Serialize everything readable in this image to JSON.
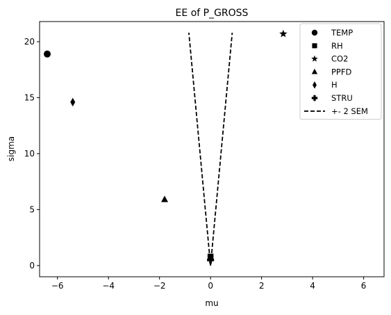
{
  "chart_data": {
    "type": "scatter",
    "title": "EE of P_GROSS",
    "xlabel": "mu",
    "ylabel": "sigma",
    "xlim": [
      -6.7,
      6.8
    ],
    "ylim": [
      -1.0,
      21.8
    ],
    "xticks": [
      -6,
      -4,
      -2,
      0,
      2,
      4,
      6
    ],
    "xtick_labels": [
      "−6",
      "−4",
      "−2",
      "0",
      "2",
      "4",
      "6"
    ],
    "yticks": [
      0,
      5,
      10,
      15,
      20
    ],
    "ytick_labels": [
      "0",
      "5",
      "10",
      "15",
      "20"
    ],
    "grid": false,
    "legend_position": "top-right",
    "series": [
      {
        "name": "TEMP",
        "marker": "circle",
        "x": [
          -6.4
        ],
        "y": [
          18.9
        ]
      },
      {
        "name": "RH",
        "marker": "square",
        "x": [
          0.0
        ],
        "y": [
          0.8
        ]
      },
      {
        "name": "CO2",
        "marker": "star",
        "x": [
          2.85
        ],
        "y": [
          20.7
        ]
      },
      {
        "name": "PPFD",
        "marker": "triangle",
        "x": [
          -1.8
        ],
        "y": [
          5.9
        ]
      },
      {
        "name": "H",
        "marker": "diamond",
        "x": [
          -5.4
        ],
        "y": [
          14.6
        ]
      },
      {
        "name": "STRU",
        "marker": "plus",
        "x": [
          0.0
        ],
        "y": [
          0.5
        ]
      }
    ],
    "sem_band": {
      "name": "+- 2 SEM",
      "style": "dashed",
      "left": {
        "x": [
          0.0,
          -0.85
        ],
        "y": [
          0.0,
          20.8
        ]
      },
      "right": {
        "x": [
          0.0,
          0.85
        ],
        "y": [
          0.0,
          20.8
        ]
      }
    },
    "color": "#000000"
  }
}
